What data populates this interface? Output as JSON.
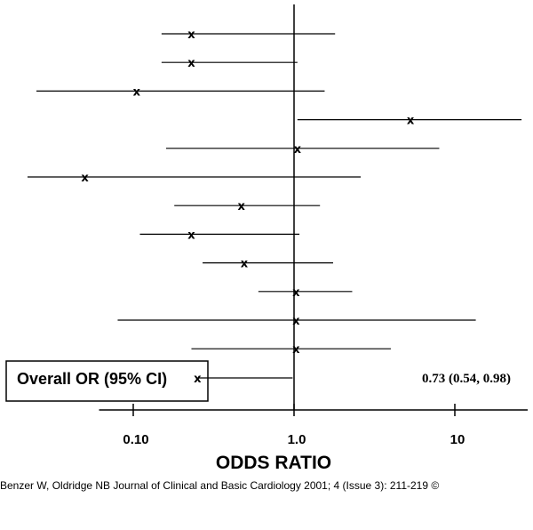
{
  "chart_data": {
    "type": "forest",
    "scale": "log",
    "xlabel": "ODDS RATIO",
    "xlim": [
      0.05,
      30
    ],
    "xticks": [
      {
        "value": 0.1,
        "label": "0.10"
      },
      {
        "value": 1.0,
        "label": "1.0"
      },
      {
        "value": 10,
        "label": "10"
      }
    ],
    "reference_line": 1.0,
    "marker_symbol": "x",
    "studies": [
      {
        "or": 0.23,
        "lower": 0.15,
        "upper": 1.8
      },
      {
        "or": 0.23,
        "lower": 0.15,
        "upper": 1.05
      },
      {
        "or": 0.105,
        "lower": 0.025,
        "upper": 1.55
      },
      {
        "or": 5.3,
        "lower": 1.05,
        "upper": 26
      },
      {
        "or": 1.05,
        "lower": 0.16,
        "upper": 8.0
      },
      {
        "or": 0.05,
        "lower": 0.022,
        "upper": 2.6
      },
      {
        "or": 0.47,
        "lower": 0.18,
        "upper": 1.45
      },
      {
        "or": 0.23,
        "lower": 0.11,
        "upper": 1.08
      },
      {
        "or": 0.49,
        "lower": 0.27,
        "upper": 1.75
      },
      {
        "or": 1.03,
        "lower": 0.6,
        "upper": 2.3
      },
      {
        "or": 1.03,
        "lower": 0.08,
        "upper": 13.5
      },
      {
        "or": 1.03,
        "lower": 0.23,
        "upper": 4.0
      }
    ],
    "overall": {
      "or": 0.73,
      "lower": 0.54,
      "upper": 0.98,
      "label": "Overall OR (95% CI)",
      "value_text": "0.73 (0.54, 0.98)"
    }
  },
  "citation": "Benzer W, Oldridge NB Journal of Clinical and Basic Cardiology 2001; 4 (Issue 3): 211-219 ©"
}
